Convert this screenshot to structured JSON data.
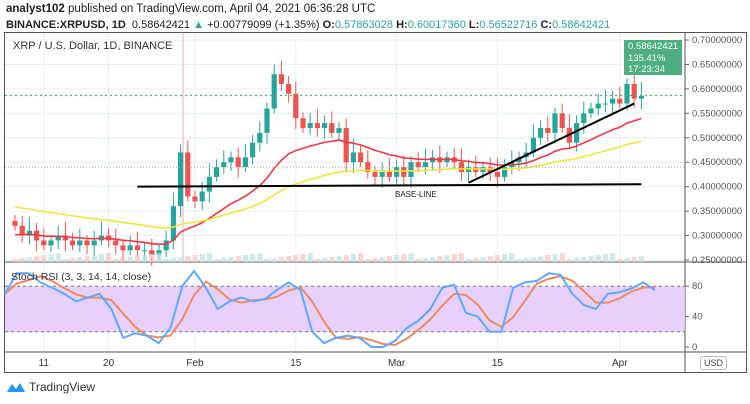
{
  "header": {
    "author": "analyst102",
    "published": " published on TradingView.com, April 04, 2021 06:36:28 UTC",
    "symbol": "BINANCE:XRPUSD, 1D",
    "last": "0.58642421",
    "change": "+0.00779099 (+1.35%)",
    "o_label": "O:",
    "o": "0.57863028",
    "h_label": "H:",
    "h": "0.60017360",
    "l_label": "L:",
    "l": "0.56522716",
    "c_label": "C:",
    "c": "0.58642421"
  },
  "chart_title": "XRP / U.S. Dollar, 1D, BINANCE",
  "currency": "USD",
  "price_label": {
    "price": "0.58642421",
    "pct": "135.41%",
    "countdown": "17:23:34"
  },
  "annotation": "BASE-LINE",
  "rsi_title": "Stoch RSI (3, 3, 14, 14, close)",
  "brand": "TradingView",
  "colors": {
    "up": "#26a69a",
    "down": "#ef5350",
    "ema_fast": "#f23645",
    "ema_slow": "#f5e33b",
    "k": "#5fa8ff",
    "d": "#f08a5d",
    "band": "#e1c6fb"
  },
  "chart_data": {
    "type": "candlestick",
    "start_date": "2021-01-07",
    "closes": [
      0.32,
      0.3,
      0.31,
      0.29,
      0.28,
      0.29,
      0.3,
      0.29,
      0.28,
      0.29,
      0.28,
      0.29,
      0.3,
      0.29,
      0.28,
      0.27,
      0.28,
      0.27,
      0.27,
      0.26,
      0.27,
      0.29,
      0.36,
      0.47,
      0.38,
      0.37,
      0.39,
      0.42,
      0.44,
      0.45,
      0.46,
      0.44,
      0.46,
      0.49,
      0.51,
      0.56,
      0.63,
      0.61,
      0.59,
      0.54,
      0.52,
      0.53,
      0.52,
      0.53,
      0.51,
      0.52,
      0.45,
      0.47,
      0.45,
      0.43,
      0.42,
      0.43,
      0.42,
      0.44,
      0.42,
      0.45,
      0.44,
      0.45,
      0.46,
      0.45,
      0.46,
      0.45,
      0.43,
      0.44,
      0.43,
      0.44,
      0.43,
      0.42,
      0.44,
      0.45,
      0.46,
      0.47,
      0.5,
      0.52,
      0.51,
      0.55,
      0.52,
      0.49,
      0.53,
      0.55,
      0.56,
      0.57,
      0.57,
      0.58,
      0.57,
      0.61,
      0.58,
      0.586
    ],
    "ema_periods": [
      20,
      50
    ],
    "ema_seeds": [
      0.3,
      0.36
    ],
    "yaxis": {
      "ticks": [
        "0.70000000",
        "0.65000000",
        "0.60000000",
        "0.55000000",
        "0.50000000",
        "0.45000000",
        "0.40000000",
        "0.35000000",
        "0.30000000",
        "0.25000000"
      ],
      "range": [
        0.25,
        0.7
      ]
    },
    "xaxis": {
      "ticks": [
        {
          "label": "11",
          "day": 4
        },
        {
          "label": "20",
          "day": 13
        },
        {
          "label": "Feb",
          "day": 25
        },
        {
          "label": "15",
          "day": 39
        },
        {
          "label": "Mar",
          "day": 53
        },
        {
          "label": "15",
          "day": 67
        },
        {
          "label": "Apr",
          "day": 84
        }
      ]
    },
    "trendlines": [
      {
        "name": "base-line",
        "from": [
          17,
          0.4
        ],
        "to": [
          87,
          0.405
        ]
      },
      {
        "name": "rising-support",
        "from": [
          63,
          0.408
        ],
        "to": [
          86,
          0.57
        ]
      }
    ],
    "stoch_rsi": {
      "levels": [
        "80",
        "40",
        "0"
      ],
      "upper": 80,
      "lower": 20,
      "k": [
        70,
        97,
        97,
        85,
        78,
        70,
        60,
        65,
        70,
        50,
        12,
        18,
        15,
        5,
        25,
        80,
        100,
        78,
        50,
        60,
        65,
        60,
        63,
        75,
        85,
        75,
        20,
        5,
        12,
        15,
        12,
        0,
        0,
        8,
        25,
        35,
        50,
        78,
        82,
        45,
        40,
        20,
        20,
        78,
        85,
        87,
        97,
        95,
        70,
        55,
        50,
        70,
        72,
        77,
        85,
        75
      ]
    }
  }
}
